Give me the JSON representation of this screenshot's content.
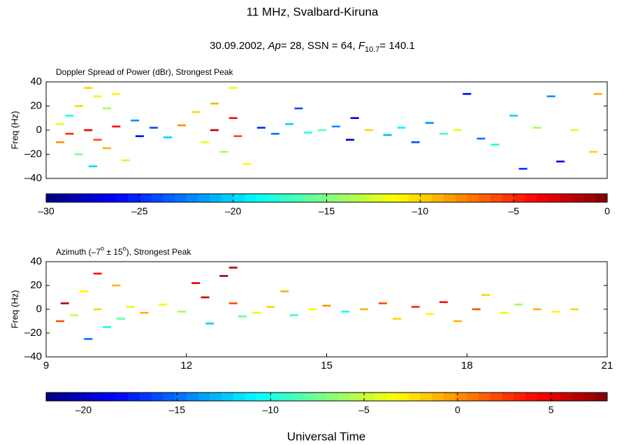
{
  "figure": {
    "title": "11 MHz, Svalbard-Kiruna",
    "subtitle_parts": [
      "30.09.2002, ",
      "Ap",
      "= 28, SSN = 64, ",
      "F",
      "10.7",
      "= 140.1"
    ],
    "xlabel": "Universal Time"
  },
  "chart_data": [
    {
      "type": "scatter",
      "colormap": "jet",
      "title_parts": [
        "Doppler Spread of Power (dBr), Strongest Peak"
      ],
      "ylabel": "Freq (Hz)",
      "xlim": [
        9,
        21
      ],
      "ylim": [
        -40,
        40
      ],
      "yticks": [
        {
          "value": -40,
          "label": "–40"
        },
        {
          "value": -20,
          "label": "–20"
        },
        0,
        20,
        40
      ],
      "x": [
        9.3,
        9.3,
        9.5,
        9.5,
        9.7,
        9.7,
        9.9,
        9.9,
        10.0,
        10.1,
        10.1,
        10.3,
        10.3,
        10.5,
        10.5,
        10.7,
        10.9,
        11.0,
        11.3,
        11.6,
        11.9,
        12.2,
        12.4,
        12.6,
        12.6,
        12.8,
        13.0,
        13.0,
        13.1,
        13.3,
        13.6,
        13.9,
        14.2,
        14.4,
        14.6,
        14.9,
        15.2,
        15.5,
        15.6,
        15.9,
        16.3,
        16.6,
        16.9,
        17.2,
        17.5,
        17.8,
        18.0,
        18.3,
        18.6,
        19.0,
        19.2,
        19.5,
        19.8,
        20.0,
        20.3,
        20.7,
        20.8
      ],
      "y": [
        5,
        -10,
        12,
        -3,
        20,
        -20,
        35,
        0,
        -30,
        28,
        -8,
        18,
        -15,
        30,
        3,
        -25,
        8,
        -5,
        2,
        -6,
        4,
        15,
        -10,
        22,
        0,
        -18,
        35,
        10,
        -5,
        -28,
        2,
        -3,
        5,
        18,
        -2,
        0,
        3,
        -8,
        10,
        0,
        -4,
        2,
        -10,
        6,
        -3,
        0,
        30,
        -7,
        -12,
        12,
        -32,
        2,
        28,
        -26,
        0,
        -18,
        30
      ],
      "values": [
        -12,
        -8,
        -18,
        -5,
        -10,
        -15,
        -10,
        -3,
        -20,
        -12,
        -6,
        -14,
        -9,
        -11,
        -4,
        -13,
        -22,
        -26,
        -24,
        -20,
        -8,
        -10,
        -12,
        -9,
        -2,
        -14,
        -12,
        -4,
        -6,
        -11,
        -25,
        -23,
        -20,
        -24,
        -18,
        -16,
        -22,
        -28,
        -27,
        -10,
        -21,
        -19,
        -24,
        -22,
        -17,
        -12,
        -26,
        -23,
        -18,
        -20,
        -25,
        -14,
        -22,
        -27,
        -12,
        -10,
        -9
      ],
      "colorbar": {
        "clim": [
          -30,
          0
        ],
        "ticks": [
          {
            "value": -30,
            "label": "–30"
          },
          {
            "value": -25,
            "label": "–25"
          },
          {
            "value": -20,
            "label": "–20"
          },
          {
            "value": -15,
            "label": "–15"
          },
          {
            "value": -10,
            "label": "–10"
          },
          {
            "value": -5,
            "label": "–5"
          },
          0
        ]
      }
    },
    {
      "type": "scatter",
      "colormap": "jet",
      "title_parts": [
        "Azimuth (–7",
        "o",
        " ± 15",
        "o",
        "), Strongest Peak"
      ],
      "ylabel": "Freq (Hz)",
      "xlim": [
        9,
        21
      ],
      "xticks": [
        9,
        12,
        15,
        18,
        21
      ],
      "ylim": [
        -40,
        40
      ],
      "yticks": [
        {
          "value": -40,
          "label": "–40"
        },
        {
          "value": -20,
          "label": "–20"
        },
        0,
        20,
        40
      ],
      "x": [
        9.3,
        9.4,
        9.6,
        9.8,
        9.9,
        10.1,
        10.1,
        10.3,
        10.5,
        10.6,
        10.8,
        11.1,
        11.5,
        11.9,
        12.2,
        12.4,
        12.5,
        12.8,
        13.0,
        13.0,
        13.2,
        13.5,
        13.8,
        14.1,
        14.3,
        14.7,
        15.0,
        15.4,
        15.8,
        16.2,
        16.5,
        16.9,
        17.2,
        17.5,
        17.8,
        18.2,
        18.4,
        18.8,
        19.1,
        19.5,
        19.9,
        20.3
      ],
      "y": [
        -10,
        5,
        -5,
        15,
        -25,
        30,
        0,
        -15,
        20,
        -8,
        2,
        -3,
        4,
        -2,
        22,
        10,
        -12,
        28,
        35,
        5,
        -6,
        -3,
        2,
        15,
        -5,
        0,
        3,
        -2,
        0,
        5,
        -8,
        2,
        -4,
        6,
        -10,
        0,
        12,
        -3,
        4,
        0,
        -2,
        0
      ],
      "values": [
        2,
        6,
        -5,
        -3,
        -15,
        4,
        -2,
        -10,
        -1,
        -8,
        -4,
        -1,
        -3,
        -6,
        5,
        6,
        -12,
        7,
        6,
        2,
        -8,
        -4,
        -2,
        -1,
        -9,
        -3,
        0,
        -10,
        -1,
        2,
        -2,
        3,
        -3,
        4,
        -1,
        2,
        -2,
        -4,
        -6,
        -1,
        -3,
        -2
      ],
      "colorbar": {
        "clim": [
          -22,
          8
        ],
        "ticks": [
          {
            "value": -20,
            "label": "–20"
          },
          {
            "value": -15,
            "label": "–15"
          },
          {
            "value": -10,
            "label": "–10"
          },
          {
            "value": -5,
            "label": "–5"
          },
          0,
          5
        ]
      }
    }
  ]
}
